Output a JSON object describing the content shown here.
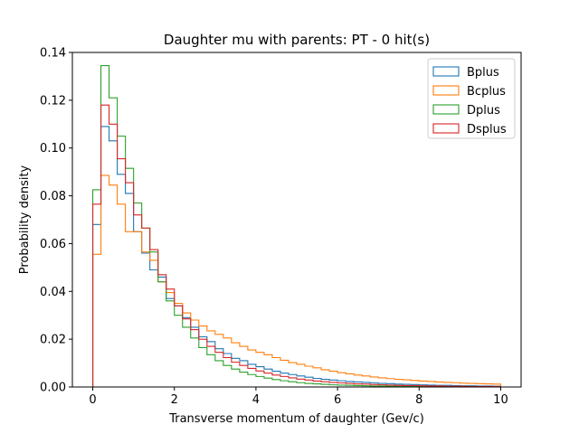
{
  "chart_data": {
    "type": "histogram",
    "title": "Daughter mu with parents: PT - 0 hit(s)",
    "xlabel": "Transverse momentum of daughter (Gev/c)",
    "ylabel": "Probability density",
    "xlim": [
      -0.5,
      10.5
    ],
    "ylim": [
      0,
      0.14
    ],
    "xticks": [
      0,
      2,
      4,
      6,
      8,
      10
    ],
    "yticks": [
      0.0,
      0.02,
      0.04,
      0.06,
      0.08,
      0.1,
      0.12,
      0.14
    ],
    "ytick_labels": [
      "0.00",
      "0.02",
      "0.04",
      "0.06",
      "0.08",
      "0.10",
      "0.12",
      "0.14"
    ],
    "grid": false,
    "legend_position": "top-right",
    "bin_edges_range": [
      0,
      10
    ],
    "bin_count": 50,
    "series": [
      {
        "name": "Bplus",
        "color": "#1f77b4",
        "values": [
          0.068,
          0.109,
          0.103,
          0.089,
          0.081,
          0.065,
          0.056,
          0.049,
          0.046,
          0.037,
          0.034,
          0.029,
          0.025,
          0.021,
          0.019,
          0.016,
          0.014,
          0.012,
          0.011,
          0.0095,
          0.0085,
          0.0075,
          0.0066,
          0.0058,
          0.0052,
          0.0046,
          0.0041,
          0.0036,
          0.0032,
          0.0029,
          0.0026,
          0.0023,
          0.0021,
          0.0019,
          0.0017,
          0.0015,
          0.0014,
          0.0012,
          0.0011,
          0.001,
          0.0009,
          0.0008,
          0.0007,
          0.0007,
          0.0006,
          0.0005,
          0.0005,
          0.0004,
          0.0004,
          0.0003
        ]
      },
      {
        "name": "Bcplus",
        "color": "#ff7f0e",
        "values": [
          0.0555,
          0.0885,
          0.0845,
          0.0765,
          0.065,
          0.065,
          0.0565,
          0.053,
          0.044,
          0.0395,
          0.035,
          0.031,
          0.028,
          0.0255,
          0.0235,
          0.022,
          0.0205,
          0.0185,
          0.017,
          0.0155,
          0.0145,
          0.0135,
          0.0123,
          0.0112,
          0.0102,
          0.0095,
          0.0087,
          0.008,
          0.0072,
          0.0066,
          0.006,
          0.0055,
          0.005,
          0.0046,
          0.0042,
          0.0038,
          0.0035,
          0.0032,
          0.003,
          0.0027,
          0.0025,
          0.0023,
          0.0021,
          0.0019,
          0.0018,
          0.0016,
          0.0015,
          0.0014,
          0.0013,
          0.0012
        ]
      },
      {
        "name": "Dplus",
        "color": "#2ca02c",
        "values": [
          0.0825,
          0.1345,
          0.121,
          0.105,
          0.0915,
          0.077,
          0.0665,
          0.0565,
          0.044,
          0.036,
          0.03,
          0.025,
          0.0205,
          0.0165,
          0.0135,
          0.011,
          0.009,
          0.0075,
          0.0062,
          0.0052,
          0.0044,
          0.0037,
          0.0031,
          0.0026,
          0.0022,
          0.0018,
          0.0015,
          0.0013,
          0.0011,
          0.0009,
          0.0008,
          0.0007,
          0.0006,
          0.0005,
          0.0004,
          0.0004,
          0.0003,
          0.0003,
          0.0002,
          0.0002,
          0.0002,
          0.0002,
          0.0001,
          0.0001,
          0.0001,
          0.0001,
          0.0001,
          0.0001,
          0.0001,
          0.0001
        ]
      },
      {
        "name": "Dsplus",
        "color": "#d62728",
        "values": [
          0.0765,
          0.118,
          0.11,
          0.0955,
          0.0855,
          0.072,
          0.0665,
          0.0575,
          0.047,
          0.041,
          0.034,
          0.0285,
          0.024,
          0.02,
          0.017,
          0.0145,
          0.0123,
          0.0104,
          0.009,
          0.0078,
          0.0067,
          0.0058,
          0.005,
          0.0044,
          0.0038,
          0.0033,
          0.0029,
          0.0025,
          0.0022,
          0.0019,
          0.0017,
          0.0015,
          0.0013,
          0.0012,
          0.001,
          0.0009,
          0.0008,
          0.0007,
          0.0006,
          0.0006,
          0.0005,
          0.0004,
          0.0004,
          0.0003,
          0.0003,
          0.0003,
          0.0002,
          0.0002,
          0.0002,
          0.0002
        ]
      }
    ]
  }
}
